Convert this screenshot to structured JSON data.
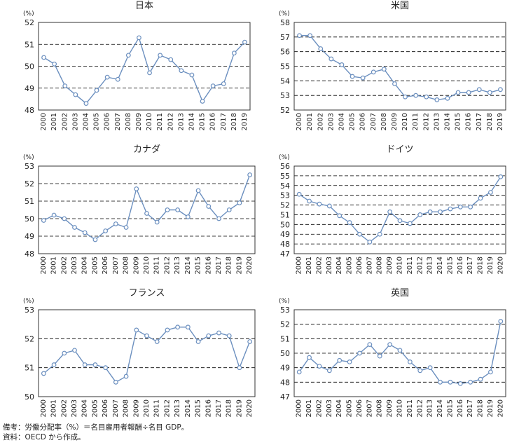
{
  "notes": {
    "line1": "備考：労働分配率（%）＝名目雇用者報酬÷名目 GDP。",
    "line2": "資料：OECD から作成。"
  },
  "colors": {
    "line": "#6b8fbf",
    "marker_fill": "#ffffff",
    "frame": "#333333",
    "grid": "#000000"
  },
  "chart_data": [
    {
      "type": "line",
      "title": "日本",
      "unit": "(%)",
      "x": [
        "2000",
        "2001",
        "2002",
        "2003",
        "2004",
        "2005",
        "2006",
        "2007",
        "2008",
        "2009",
        "2010",
        "2011",
        "2012",
        "2013",
        "2014",
        "2015",
        "2016",
        "2017",
        "2018",
        "2019"
      ],
      "values": [
        50.4,
        50.1,
        49.1,
        48.7,
        48.3,
        48.9,
        49.5,
        49.4,
        50.5,
        51.3,
        49.7,
        50.5,
        50.3,
        49.8,
        49.6,
        48.4,
        49.1,
        49.2,
        50.6,
        51.1
      ],
      "ylim": [
        48,
        52
      ],
      "yticks": [
        48,
        49,
        50,
        51,
        52
      ],
      "grid": true
    },
    {
      "type": "line",
      "title": "米国",
      "unit": "(%)",
      "x": [
        "2000",
        "2001",
        "2002",
        "2003",
        "2004",
        "2005",
        "2006",
        "2007",
        "2008",
        "2009",
        "2010",
        "2011",
        "2012",
        "2013",
        "2014",
        "2015",
        "2016",
        "2017",
        "2018",
        "2019"
      ],
      "values": [
        57.1,
        57.1,
        56.2,
        55.5,
        55.1,
        54.3,
        54.2,
        54.6,
        54.8,
        53.8,
        52.9,
        53.0,
        52.9,
        52.7,
        52.8,
        53.2,
        53.2,
        53.4,
        53.2,
        53.4
      ],
      "ylim": [
        52,
        58
      ],
      "yticks": [
        52,
        53,
        54,
        55,
        56,
        57,
        58
      ],
      "grid": true
    },
    {
      "type": "line",
      "title": "カナダ",
      "unit": "(%)",
      "x": [
        "2000",
        "2001",
        "2002",
        "2003",
        "2004",
        "2005",
        "2006",
        "2007",
        "2008",
        "2009",
        "2010",
        "2011",
        "2012",
        "2013",
        "2014",
        "2015",
        "2016",
        "2017",
        "2018",
        "2019",
        "2020"
      ],
      "values": [
        49.9,
        50.2,
        50.0,
        49.5,
        49.2,
        48.8,
        49.3,
        49.7,
        49.5,
        51.7,
        50.3,
        49.8,
        50.5,
        50.5,
        50.1,
        51.6,
        50.7,
        50.0,
        50.5,
        50.9,
        52.5
      ],
      "ylim": [
        48,
        53
      ],
      "yticks": [
        48,
        49,
        50,
        51,
        52,
        53
      ],
      "grid": true
    },
    {
      "type": "line",
      "title": "ドイツ",
      "unit": "(%)",
      "x": [
        "2000",
        "2001",
        "2002",
        "2003",
        "2004",
        "2005",
        "2006",
        "2007",
        "2008",
        "2009",
        "2010",
        "2011",
        "2012",
        "2013",
        "2014",
        "2015",
        "2016",
        "2017",
        "2018",
        "2019",
        "2020"
      ],
      "values": [
        53.1,
        52.4,
        52.1,
        51.9,
        50.9,
        50.2,
        49.0,
        48.2,
        49.0,
        51.3,
        50.4,
        50.1,
        51.0,
        51.3,
        51.3,
        51.6,
        51.8,
        51.8,
        52.7,
        53.3,
        54.9
      ],
      "ylim": [
        47,
        56
      ],
      "yticks": [
        47,
        48,
        49,
        50,
        51,
        52,
        53,
        54,
        55,
        56
      ],
      "grid": true
    },
    {
      "type": "line",
      "title": "フランス",
      "unit": "(%)",
      "x": [
        "2000",
        "2001",
        "2002",
        "2003",
        "2004",
        "2005",
        "2006",
        "2007",
        "2008",
        "2009",
        "2010",
        "2011",
        "2012",
        "2013",
        "2014",
        "2015",
        "2016",
        "2017",
        "2018",
        "2019",
        "2020"
      ],
      "values": [
        50.8,
        51.1,
        51.5,
        51.6,
        51.1,
        51.1,
        51.0,
        50.5,
        50.7,
        52.3,
        52.1,
        51.9,
        52.3,
        52.4,
        52.4,
        51.9,
        52.1,
        52.2,
        52.1,
        51.0,
        51.9
      ],
      "ylim": [
        50,
        53
      ],
      "yticks": [
        50,
        51,
        52,
        53
      ],
      "grid": true
    },
    {
      "type": "line",
      "title": "英国",
      "unit": "(%)",
      "x": [
        "2000",
        "2001",
        "2002",
        "2003",
        "2004",
        "2005",
        "2006",
        "2007",
        "2008",
        "2009",
        "2010",
        "2011",
        "2012",
        "2013",
        "2014",
        "2015",
        "2016",
        "2017",
        "2018",
        "2019",
        "2020"
      ],
      "values": [
        48.7,
        49.7,
        49.1,
        48.8,
        49.5,
        49.4,
        50.0,
        50.6,
        49.8,
        50.6,
        50.2,
        49.4,
        48.8,
        49.0,
        48.0,
        48.0,
        47.9,
        48.0,
        48.2,
        48.7,
        52.2
      ],
      "ylim": [
        47,
        53
      ],
      "yticks": [
        47,
        48,
        49,
        50,
        51,
        52,
        53
      ],
      "grid": true
    }
  ]
}
